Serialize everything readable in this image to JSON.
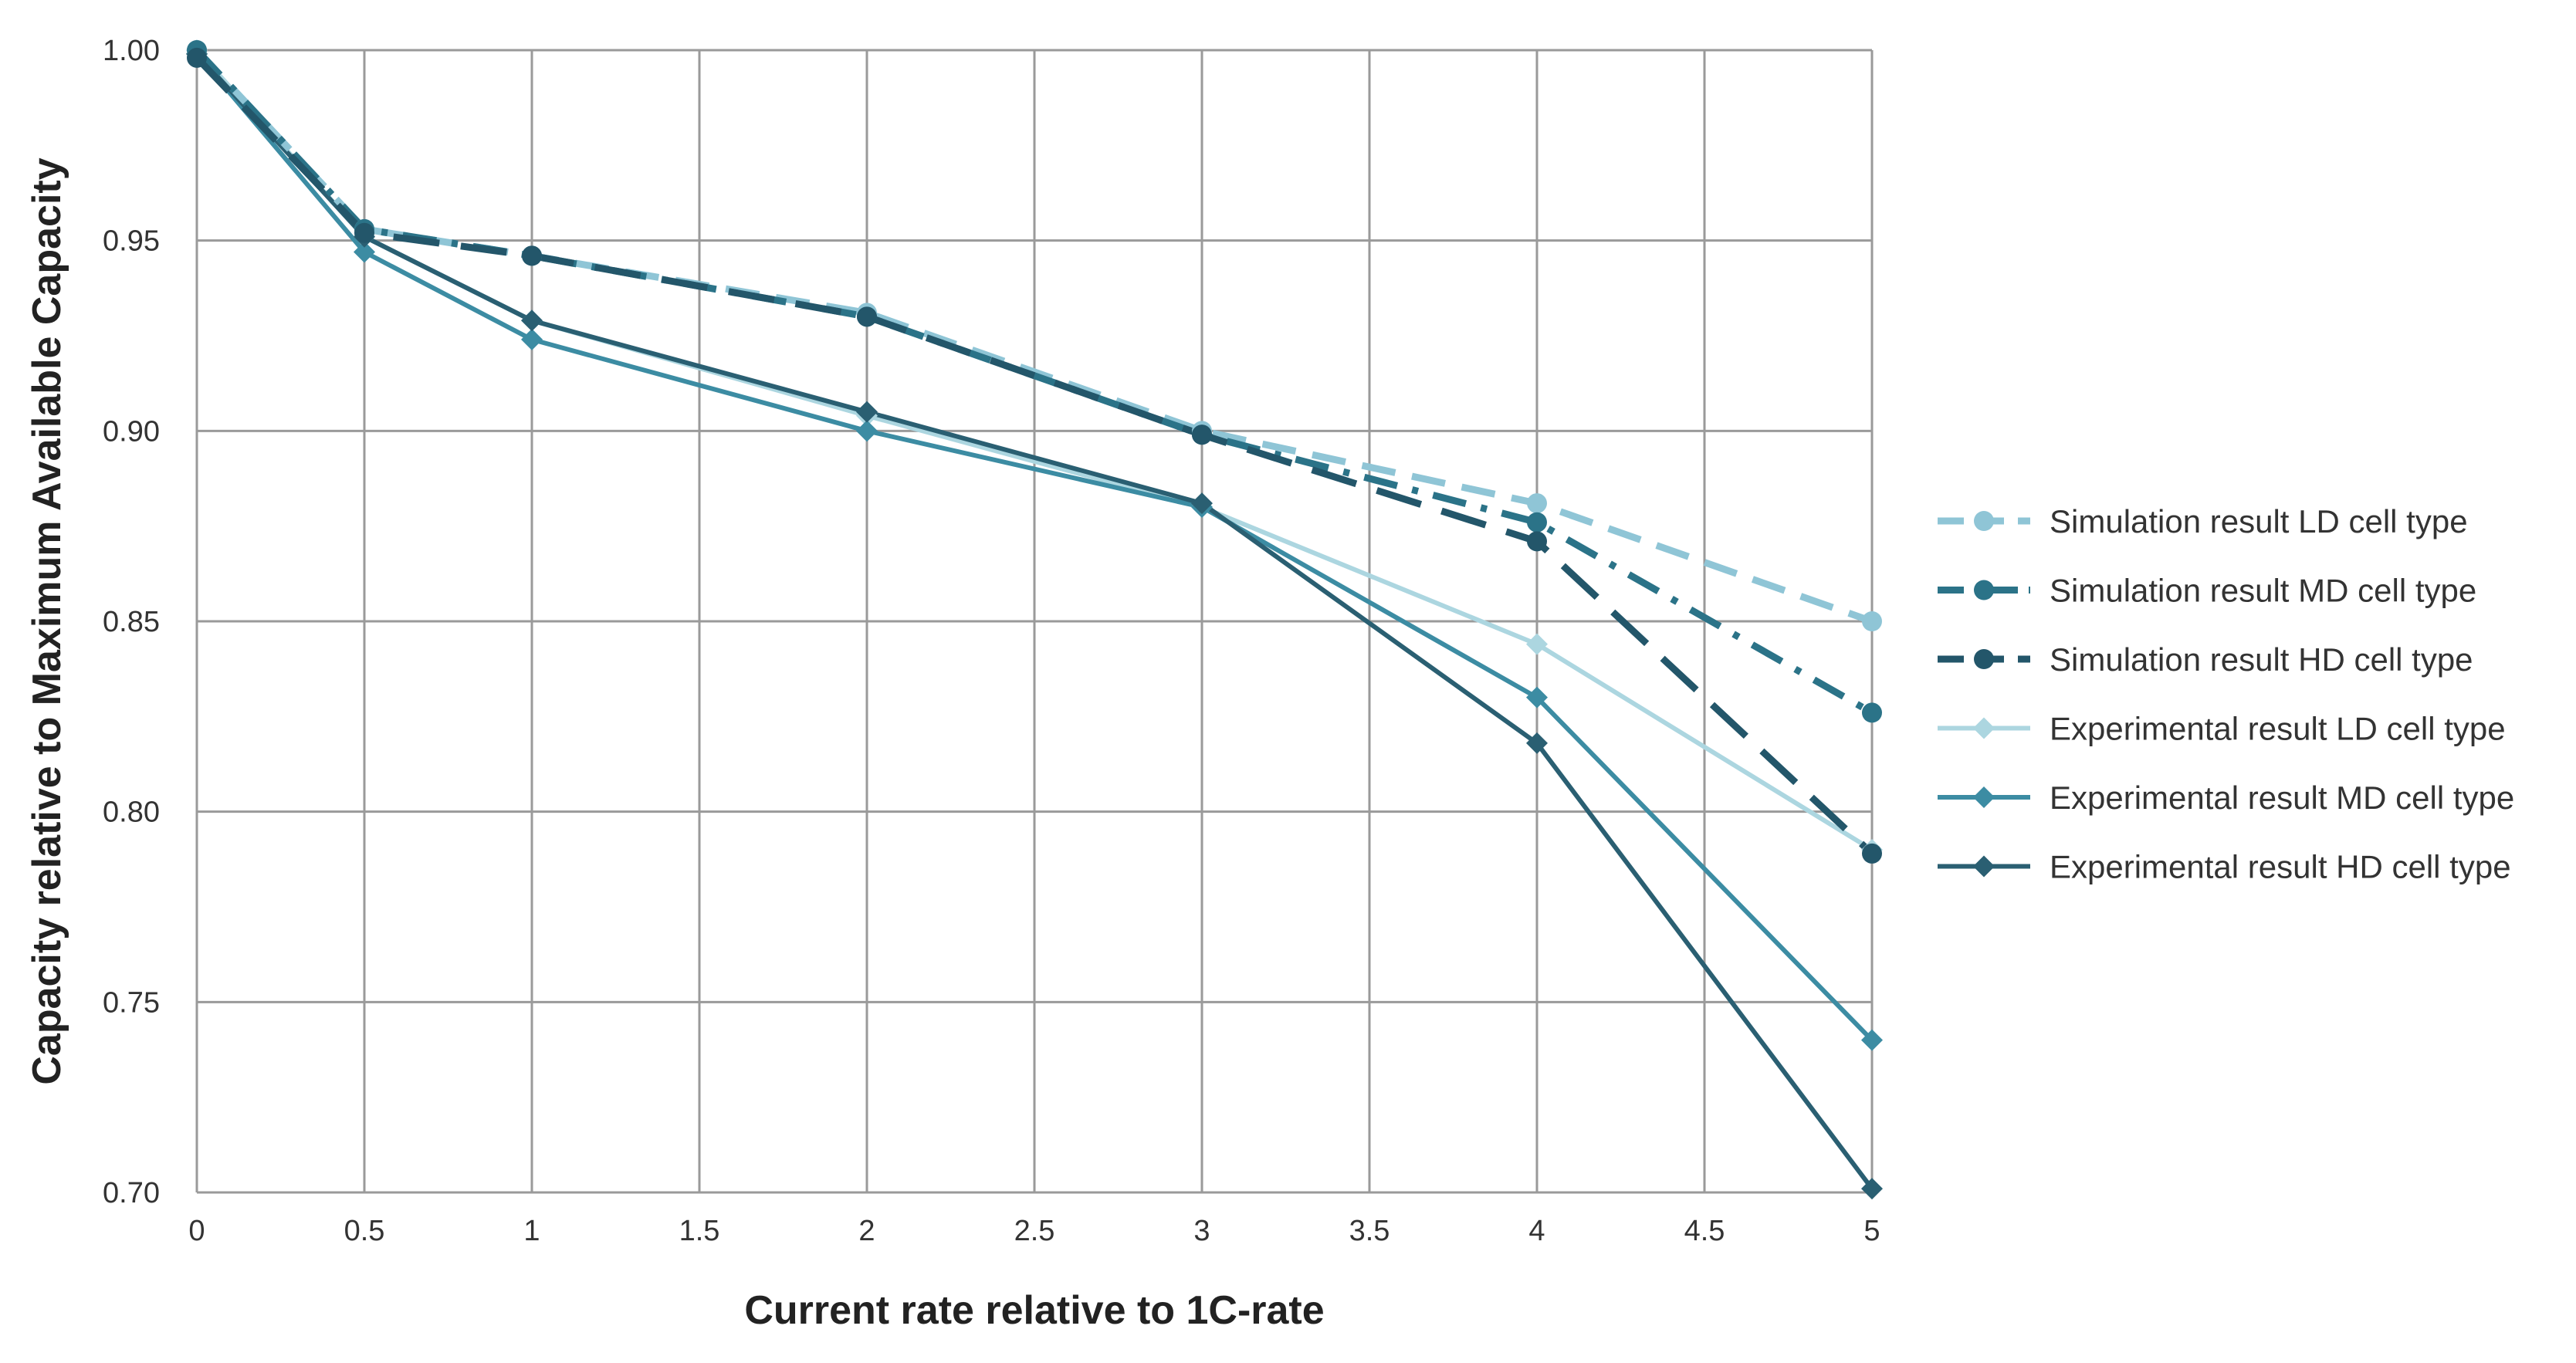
{
  "chart_data": {
    "type": "line",
    "title": "",
    "xlabel": "Current rate relative to 1C-rate",
    "ylabel": "Capacity relative to Maximum Available Capacity",
    "xlim": [
      0,
      5
    ],
    "ylim": [
      0.7,
      1.0
    ],
    "x_ticks": [
      0,
      0.5,
      1,
      1.5,
      2,
      2.5,
      3,
      3.5,
      4,
      4.5,
      5
    ],
    "x_tick_labels": [
      "0",
      "0.5",
      "1",
      "1.5",
      "2",
      "2.5",
      "3",
      "3.5",
      "4",
      "4.5",
      "5"
    ],
    "y_ticks": [
      0.7,
      0.75,
      0.8,
      0.85,
      0.9,
      0.95,
      1.0
    ],
    "y_tick_labels": [
      "0.70",
      "0.75",
      "0.80",
      "0.85",
      "0.90",
      "0.95",
      "1.00"
    ],
    "grid": true,
    "legend_position": "right",
    "x": [
      0,
      0.5,
      1,
      2,
      3,
      4,
      5
    ],
    "series": [
      {
        "name": "Simulation result LD cell type",
        "values": [
          1.0,
          0.953,
          0.946,
          0.931,
          0.9,
          0.881,
          0.85
        ],
        "color": "#8fc5d6",
        "dash": "dash",
        "marker": "circle"
      },
      {
        "name": "Simulation result MD cell type",
        "values": [
          1.0,
          0.953,
          0.946,
          0.93,
          0.899,
          0.876,
          0.826
        ],
        "color": "#2b7388",
        "dash": "dashdot",
        "marker": "circle"
      },
      {
        "name": "Simulation result HD cell type",
        "values": [
          0.998,
          0.952,
          0.946,
          0.93,
          0.899,
          0.871,
          0.789
        ],
        "color": "#23566a",
        "dash": "longdash",
        "marker": "circle"
      },
      {
        "name": "Experimental result LD cell type",
        "values": [
          1.0,
          0.951,
          0.929,
          0.904,
          0.88,
          0.844,
          0.79
        ],
        "color": "#acd6e0",
        "dash": "solid",
        "marker": "diamond"
      },
      {
        "name": "Experimental result MD cell type",
        "values": [
          0.999,
          0.947,
          0.924,
          0.9,
          0.88,
          0.83,
          0.74
        ],
        "color": "#3c8ca3",
        "dash": "solid",
        "marker": "diamond"
      },
      {
        "name": "Experimental result HD cell type",
        "values": [
          0.999,
          0.951,
          0.929,
          0.905,
          0.881,
          0.818,
          0.701
        ],
        "color": "#2a5f72",
        "dash": "solid",
        "marker": "diamond"
      }
    ]
  },
  "legend": {
    "items": [
      "Simulation result LD cell type",
      "Simulation result MD cell type",
      "Simulation result HD cell type",
      "Experimental result LD cell type",
      "Experimental result MD cell type",
      "Experimental result HD cell type"
    ]
  }
}
